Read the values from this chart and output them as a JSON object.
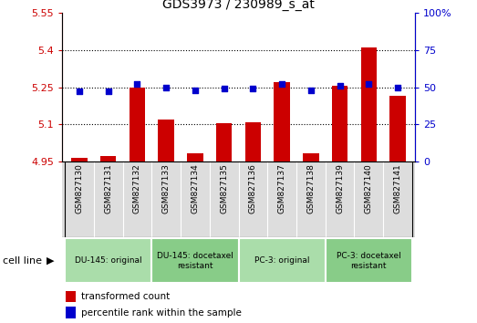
{
  "title": "GDS3973 / 230989_s_at",
  "samples": [
    "GSM827130",
    "GSM827131",
    "GSM827132",
    "GSM827133",
    "GSM827134",
    "GSM827135",
    "GSM827136",
    "GSM827137",
    "GSM827138",
    "GSM827139",
    "GSM827140",
    "GSM827141"
  ],
  "bar_values": [
    4.965,
    4.972,
    5.25,
    5.12,
    4.985,
    5.105,
    5.11,
    5.27,
    4.985,
    5.255,
    5.41,
    5.215
  ],
  "percentile_values": [
    47,
    47,
    52,
    50,
    48,
    49,
    49,
    52,
    48,
    51,
    52,
    50
  ],
  "bar_color": "#cc0000",
  "percentile_color": "#0000cc",
  "ylim_left": [
    4.95,
    5.55
  ],
  "ylim_right": [
    0,
    100
  ],
  "yticks_left": [
    4.95,
    5.1,
    5.25,
    5.4,
    5.55
  ],
  "yticks_right": [
    0,
    25,
    50,
    75,
    100
  ],
  "ytick_labels_right": [
    "0",
    "25",
    "50",
    "75",
    "100%"
  ],
  "grid_values": [
    5.1,
    5.25,
    5.4
  ],
  "cell_line_groups": [
    {
      "label": "DU-145: original",
      "start": 0,
      "end": 2,
      "color": "#aaddaa"
    },
    {
      "label": "DU-145: docetaxel\nresistant",
      "start": 3,
      "end": 5,
      "color": "#88cc88"
    },
    {
      "label": "PC-3: original",
      "start": 6,
      "end": 8,
      "color": "#aaddaa"
    },
    {
      "label": "PC-3: docetaxel\nresistant",
      "start": 9,
      "end": 11,
      "color": "#88cc88"
    }
  ],
  "legend_bar_label": "transformed count",
  "legend_pct_label": "percentile rank within the sample",
  "cell_line_label": "cell line",
  "bar_bottom": 4.95
}
